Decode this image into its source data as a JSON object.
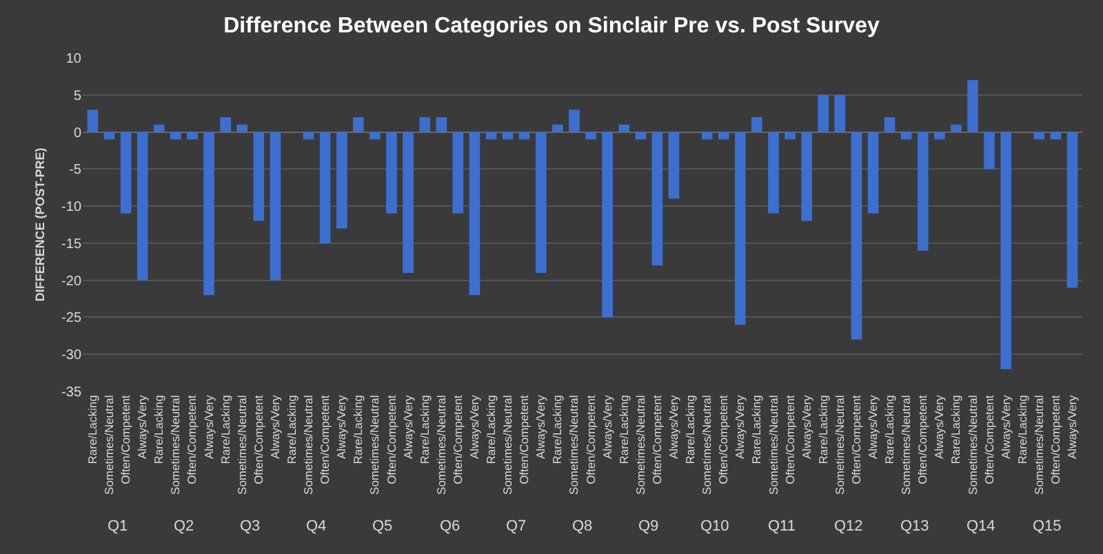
{
  "chart_data": {
    "type": "bar",
    "title": "Difference Between Categories on Sinclair Pre vs. Post Survey",
    "ylabel": "DIFFERENCE (POST-PRE)",
    "categories": [
      "Rare/Lacking",
      "Sometimes/Neutral",
      "Often/Competent",
      "Always/Very",
      "Rare/Lacking",
      "Sometimes/Neutral",
      "Often/Competent",
      "Always/Very",
      "Rare/Lacking",
      "Sometimes/Neutral",
      "Often/Competent",
      "Always/Very",
      "Rare/Lacking",
      "Sometimes/Neutral",
      "Often/Competent",
      "Always/Very",
      "Rare/Lacking",
      "Sometimes/Neutral",
      "Often/Competent",
      "Always/Very",
      "Rare/Lacking",
      "Sometimes/Neutral",
      "Often/Competent",
      "Always/Very",
      "Rare/Lacking",
      "Sometimes/Neutral",
      "Often/Competent",
      "Always/Very",
      "Rare/Lacking",
      "Sometimes/Neutral",
      "Often/Competent",
      "Always/Very",
      "Rare/Lacking",
      "Sometimes/Neutral",
      "Often/Competent",
      "Always/Very",
      "Rare/Lacking",
      "Sometimes/Neutral",
      "Often/Competent",
      "Always/Very",
      "Rare/Lacking",
      "Sometimes/Neutral",
      "Often/Competent",
      "Always/Very",
      "Rare/Lacking",
      "Sometimes/Neutral",
      "Often/Competent",
      "Always/Very",
      "Rare/Lacking",
      "Sometimes/Neutral",
      "Often/Competent",
      "Always/Very",
      "Rare/Lacking",
      "Sometimes/Neutral",
      "Often/Competent",
      "Always/Very",
      "Rare/Lacking",
      "Sometimes/Neutral",
      "Often/Competent",
      "Always/Very"
    ],
    "values": [
      3,
      -1,
      -11,
      -20,
      1,
      -1,
      -1,
      -22,
      2,
      1,
      -12,
      -20,
      0,
      -1,
      -15,
      -13,
      2,
      -1,
      -11,
      -19,
      2,
      2,
      -11,
      -22,
      -1,
      -1,
      -1,
      -19,
      1,
      3,
      -1,
      -25,
      1,
      -1,
      -18,
      -9,
      0,
      -1,
      -1,
      -26,
      2,
      -11,
      -1,
      -12,
      5,
      5,
      -28,
      -11,
      2,
      -1,
      -16,
      -1,
      1,
      7,
      -5,
      -32,
      0,
      -1,
      -1,
      -21
    ],
    "color": "#3d6fd0",
    "annotations": [
      "Q1",
      "Q2",
      "Q3",
      "Q4",
      "Q5",
      "Q6",
      "Q7",
      "Q8",
      "Q9",
      "Q10",
      "Q11",
      "Q12",
      "Q13",
      "Q14",
      "Q15"
    ],
    "ylim": [
      -35,
      10
    ],
    "yticks": [
      -35,
      -30,
      -25,
      -20,
      -15,
      -10,
      -5,
      0,
      5,
      10
    ],
    "grid": "y"
  }
}
